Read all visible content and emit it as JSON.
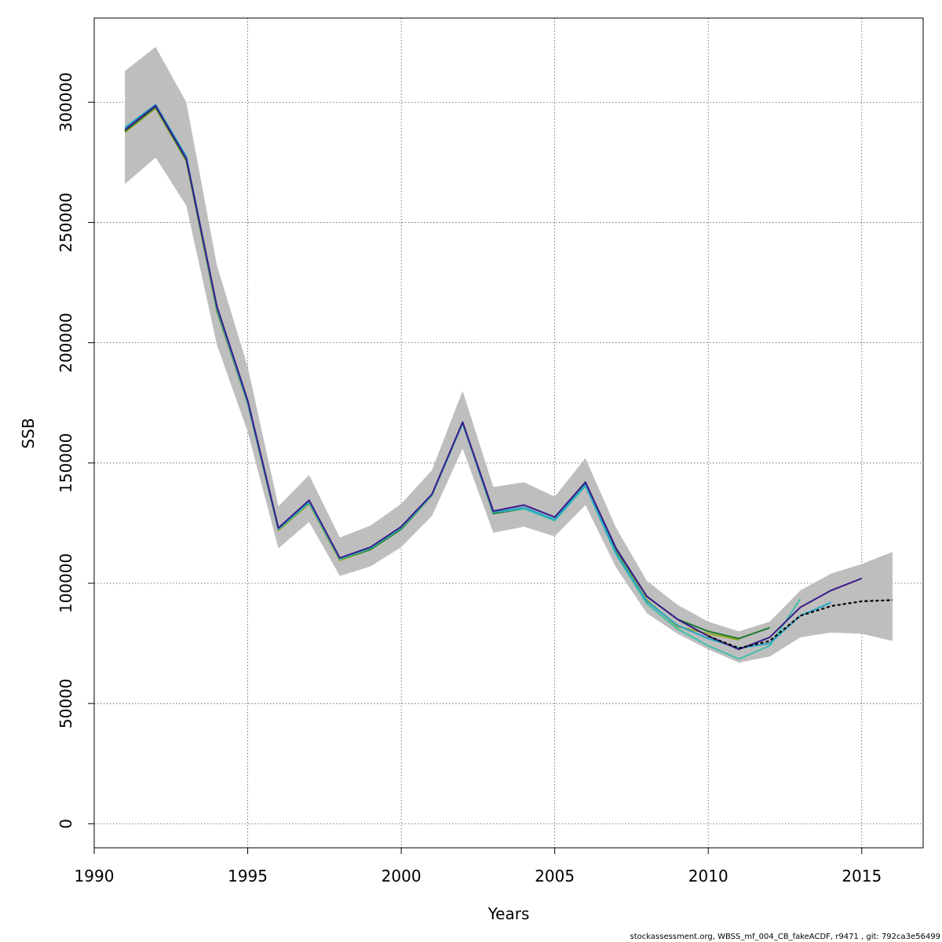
{
  "chart_data": {
    "type": "line",
    "title": "",
    "xlabel": "Years",
    "ylabel": "SSB",
    "xlim": [
      1990,
      2017
    ],
    "ylim": [
      -10000,
      335000
    ],
    "grid": true,
    "grid_style": "dotted",
    "xticks": [
      1990,
      1995,
      2000,
      2005,
      2010,
      2015
    ],
    "yticks": [
      0,
      50000,
      100000,
      150000,
      200000,
      250000,
      300000
    ],
    "confidence_band": {
      "color": "#bebebe",
      "x": [
        1991,
        1992,
        1993,
        1994,
        1995,
        1996,
        1997,
        1998,
        1999,
        2000,
        2001,
        2002,
        2003,
        2004,
        2005,
        2006,
        2007,
        2008,
        2009,
        2010,
        2011,
        2012,
        2013,
        2014,
        2015,
        2016
      ],
      "upper": [
        313000,
        323000,
        300000,
        232000,
        190000,
        132000,
        145000,
        119000,
        124000,
        133000,
        147000,
        180000,
        140000,
        142000,
        136000,
        152000,
        123000,
        101000,
        91000,
        84000,
        80000,
        84000,
        97000,
        104000,
        108000,
        113000
      ],
      "lower": [
        266000,
        277000,
        257000,
        199000,
        163000,
        114500,
        125500,
        103000,
        107000,
        115000,
        128000,
        156000,
        121000,
        123500,
        119500,
        132500,
        106500,
        87500,
        79000,
        72500,
        67000,
        69500,
        77500,
        79500,
        79000,
        76000
      ]
    },
    "series": [
      {
        "color": "#000000",
        "dashed": true,
        "x": [
          2010,
          2011,
          2012,
          2013,
          2014,
          2015,
          2016
        ],
        "values": [
          78000,
          73000,
          76000,
          86500,
          90500,
          92500,
          93000
        ]
      },
      {
        "color": "#3b1a8a",
        "x": [
          1991,
          1992,
          1993,
          1994,
          1995,
          1996,
          1997,
          1998,
          1999,
          2000,
          2001,
          2002,
          2003,
          2004,
          2005,
          2006,
          2007,
          2008,
          2009,
          2010,
          2011,
          2012,
          2013,
          2014,
          2015
        ],
        "values": [
          288500,
          298500,
          276500,
          215000,
          176000,
          123000,
          134500,
          110500,
          115000,
          123500,
          137000,
          167000,
          130000,
          132500,
          127500,
          142000,
          114500,
          94500,
          85000,
          78000,
          72500,
          77500,
          90000,
          97000,
          102000
        ]
      },
      {
        "color": "#26a6c8",
        "x": [
          1991,
          1992,
          1993,
          1994,
          1995,
          1996,
          1997,
          1998,
          1999,
          2000,
          2001,
          2002,
          2003,
          2004,
          2005,
          2006,
          2007,
          2008,
          2009,
          2010,
          2011,
          2012,
          2013,
          2014
        ],
        "values": [
          289500,
          299000,
          277500,
          214500,
          175000,
          122500,
          134000,
          110500,
          115000,
          123500,
          137000,
          166500,
          129500,
          131500,
          126500,
          141000,
          112500,
          92500,
          82500,
          77000,
          73000,
          75000,
          86500,
          92000
        ]
      },
      {
        "color": "#3dbfa8",
        "x": [
          1991,
          1992,
          1993,
          1994,
          1995,
          1996,
          1997,
          1998,
          1999,
          2000,
          2001,
          2002,
          2003,
          2004,
          2005,
          2006,
          2007,
          2008,
          2009,
          2010,
          2011,
          2012,
          2013
        ],
        "values": [
          288500,
          298500,
          276500,
          214000,
          175000,
          122500,
          133500,
          110000,
          114500,
          123000,
          136500,
          166500,
          129500,
          131000,
          126000,
          140500,
          112000,
          91500,
          81000,
          74000,
          68500,
          74000,
          93500
        ]
      },
      {
        "color": "#1c7a2e",
        "x": [
          1991,
          1992,
          1993,
          1994,
          1995,
          1996,
          1997,
          1998,
          1999,
          2000,
          2001,
          2002,
          2003,
          2004,
          2005,
          2006,
          2007,
          2008,
          2009,
          2010,
          2011,
          2012
        ],
        "values": [
          288000,
          298000,
          276000,
          213500,
          175000,
          122500,
          133500,
          110000,
          114000,
          122500,
          136500,
          166500,
          129000,
          131000,
          126500,
          142000,
          114000,
          94500,
          85000,
          80000,
          77000,
          81500
        ]
      },
      {
        "color": "#9aa51e",
        "x": [
          1991,
          1992,
          1993,
          1994,
          1995,
          1996,
          1997,
          1998,
          1999,
          2000,
          2001,
          2002,
          2003,
          2004,
          2005,
          2006,
          2007,
          2008,
          2009,
          2010,
          2011
        ],
        "values": [
          287500,
          297500,
          275500,
          213000,
          174500,
          122000,
          133000,
          109500,
          114000,
          122500,
          136500,
          167000,
          129000,
          131000,
          126500,
          142000,
          113000,
          93000,
          82000,
          79000,
          76500
        ]
      }
    ]
  },
  "footer": {
    "text": "stockassessment.org, WBSS_mf_004_CB_fakeACDF, r9471 , git: 792ca3e56499"
  }
}
